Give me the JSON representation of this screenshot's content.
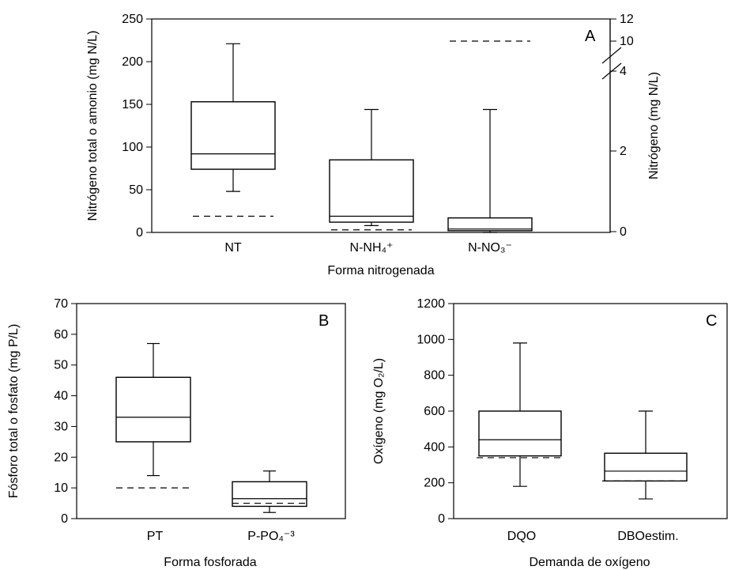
{
  "chart_data": [
    {
      "type": "box",
      "panel": "A",
      "xlabel": "Forma nitrogenada",
      "ylabel": "Nitrógeno total o amonio (mg N/L)",
      "y2label": "Nitrógeno (mg N/L)",
      "ylim": [
        0,
        250
      ],
      "yticks": [
        "0",
        "50",
        "100",
        "150",
        "200",
        "250"
      ],
      "y2ticks": [
        "0",
        "2",
        "4",
        "10",
        "12"
      ],
      "categories": [
        "NT",
        "N-NH₄⁺",
        "N-NO₃⁻"
      ],
      "boxes": [
        {
          "category": "NT",
          "min": 48,
          "q1": 74,
          "median": 92,
          "q3": 153,
          "max": 221,
          "reference": 19
        },
        {
          "category": "N-NH₄⁺",
          "min": 8,
          "q1": 12,
          "median": 19,
          "q3": 85,
          "max": 144,
          "reference": 3
        },
        {
          "category": "N-NO₃⁻",
          "min": 0,
          "q1": 2,
          "median": 4,
          "q3": 17,
          "max": 144,
          "reference": 10
        }
      ]
    },
    {
      "type": "box",
      "panel": "B",
      "xlabel": "Forma fosforada",
      "ylabel": "Fósforo total o fosfato (mg P/L)",
      "ylim": [
        0,
        70
      ],
      "yticks": [
        "0",
        "10",
        "20",
        "30",
        "40",
        "50",
        "60",
        "70"
      ],
      "categories": [
        "PT",
        "P-PO₄⁻³"
      ],
      "boxes": [
        {
          "category": "PT",
          "min": 14,
          "q1": 25,
          "median": 33,
          "q3": 46,
          "max": 57,
          "reference": 10
        },
        {
          "category": "P-PO₄⁻³",
          "min": 2,
          "q1": 4,
          "median": 6.5,
          "q3": 12,
          "max": 15.5,
          "reference": 5
        }
      ]
    },
    {
      "type": "box",
      "panel": "C",
      "xlabel": "Demanda de oxígeno",
      "ylabel": "Oxígeno (mg O₂/L)",
      "ylim": [
        0,
        1200
      ],
      "yticks": [
        "0",
        "200",
        "400",
        "600",
        "800",
        "1000",
        "1200"
      ],
      "categories": [
        "DQO",
        "DBOestim."
      ],
      "boxes": [
        {
          "category": "DQO",
          "min": 180,
          "q1": 350,
          "median": 440,
          "q3": 600,
          "max": 980,
          "reference": 340
        },
        {
          "category": "DBOestim.",
          "min": 110,
          "q1": 210,
          "median": 265,
          "q3": 365,
          "max": 600,
          "reference": 210
        }
      ]
    }
  ]
}
